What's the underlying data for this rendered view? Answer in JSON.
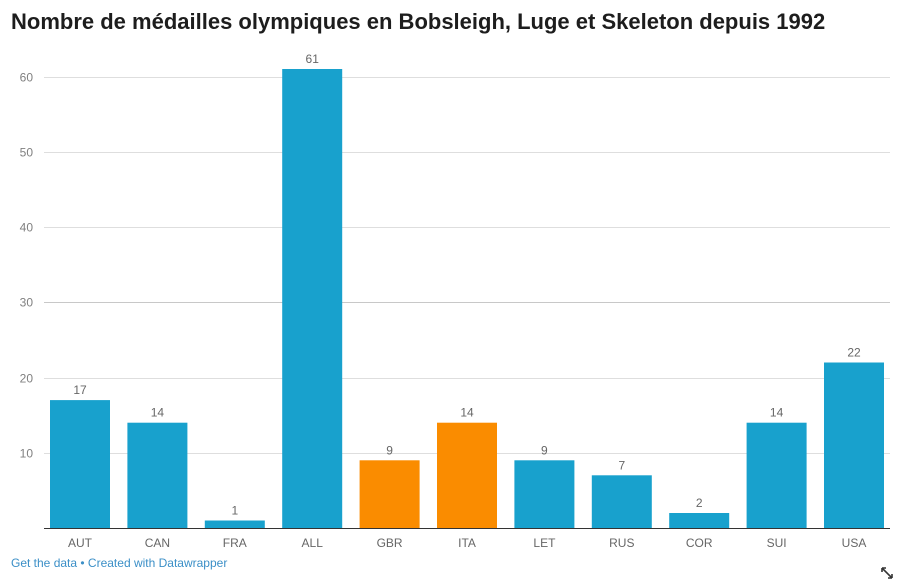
{
  "chart_data": {
    "type": "bar",
    "title": "Nombre de médailles olympiques en Bobsleigh, Luge et Skeleton depuis 1992",
    "categories": [
      "AUT",
      "CAN",
      "FRA",
      "ALL",
      "GBR",
      "ITA",
      "LET",
      "RUS",
      "COR",
      "SUI",
      "USA"
    ],
    "values": [
      17,
      14,
      1,
      61,
      9,
      14,
      9,
      7,
      2,
      14,
      22
    ],
    "highlighted": [
      "GBR",
      "ITA"
    ],
    "colors": {
      "default": "#18a1cd",
      "highlight": "#fa8c00"
    },
    "xlabel": "",
    "ylabel": "",
    "ylim": [
      0,
      61
    ],
    "yticks": [
      10,
      20,
      30,
      40,
      50,
      60
    ],
    "grid": true,
    "legend": "none"
  },
  "footer": {
    "get_data": "Get the data",
    "separator": " • ",
    "created_with": "Created with Datawrapper"
  }
}
